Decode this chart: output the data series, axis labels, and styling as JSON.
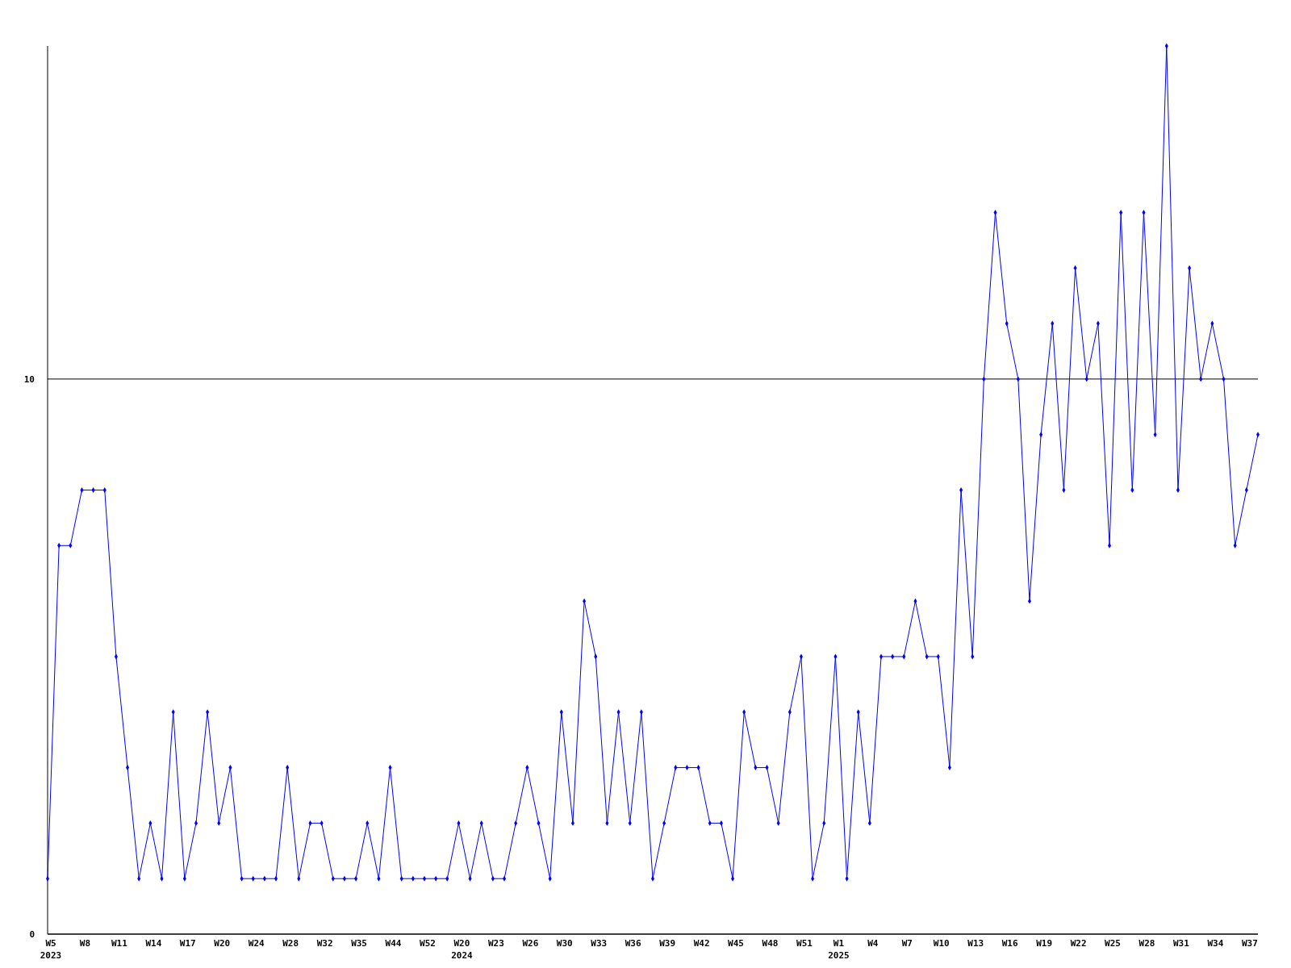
{
  "chart_data": {
    "type": "line",
    "categories": [
      "W5\n2023",
      null,
      null,
      "W8",
      null,
      null,
      "W11",
      null,
      null,
      "W14",
      null,
      null,
      "W17",
      null,
      null,
      "W20",
      null,
      null,
      "W24",
      null,
      null,
      "W28",
      null,
      null,
      "W32",
      null,
      null,
      "W35",
      null,
      null,
      "W44",
      null,
      null,
      "W52",
      null,
      null,
      "W20\n2024",
      null,
      null,
      "W23",
      null,
      null,
      "W26",
      null,
      null,
      "W30",
      null,
      null,
      "W33",
      null,
      null,
      "W36",
      null,
      null,
      "W39",
      null,
      null,
      "W42",
      null,
      null,
      "W45",
      null,
      null,
      "W48",
      null,
      null,
      "W51",
      null,
      null,
      "W1\n2025",
      null,
      null,
      "W4",
      null,
      null,
      "W7",
      null,
      null,
      "W10",
      null,
      null,
      "W13",
      null,
      null,
      "W16",
      null,
      null,
      "W19",
      null,
      null,
      "W22",
      null,
      null,
      "W25",
      null,
      null,
      "W28",
      null,
      null,
      "W31",
      null,
      null,
      "W34",
      null,
      null,
      "W37",
      null
    ],
    "series": [
      {
        "color": "#0000ff",
        "values": [
          1,
          7,
          7,
          8,
          8,
          8,
          5,
          3,
          1,
          2,
          1,
          4,
          1,
          2,
          4,
          2,
          3,
          1,
          1,
          1,
          1,
          3,
          1,
          2,
          2,
          1,
          1,
          1,
          2,
          1,
          3,
          1,
          1,
          1,
          1,
          1,
          2,
          1,
          2,
          1,
          1,
          2,
          3,
          2,
          1,
          4,
          2,
          6,
          5,
          2,
          4,
          2,
          4,
          1,
          2,
          3,
          3,
          3,
          2,
          2,
          1,
          4,
          3,
          3,
          2,
          4,
          5,
          1,
          2,
          5,
          1,
          4,
          2,
          5,
          5,
          5,
          6,
          5,
          5,
          3,
          8,
          5,
          10,
          13,
          11,
          10,
          6,
          9,
          11,
          8,
          12,
          10,
          11,
          7,
          13,
          8,
          13,
          9,
          16,
          8,
          12,
          10,
          11,
          10,
          7,
          8,
          9
        ]
      }
    ],
    "ylim": [
      0,
      16
    ],
    "yticks": [
      0,
      10
    ],
    "grid": "y",
    "marker": "diamond",
    "line_style": "solid"
  }
}
